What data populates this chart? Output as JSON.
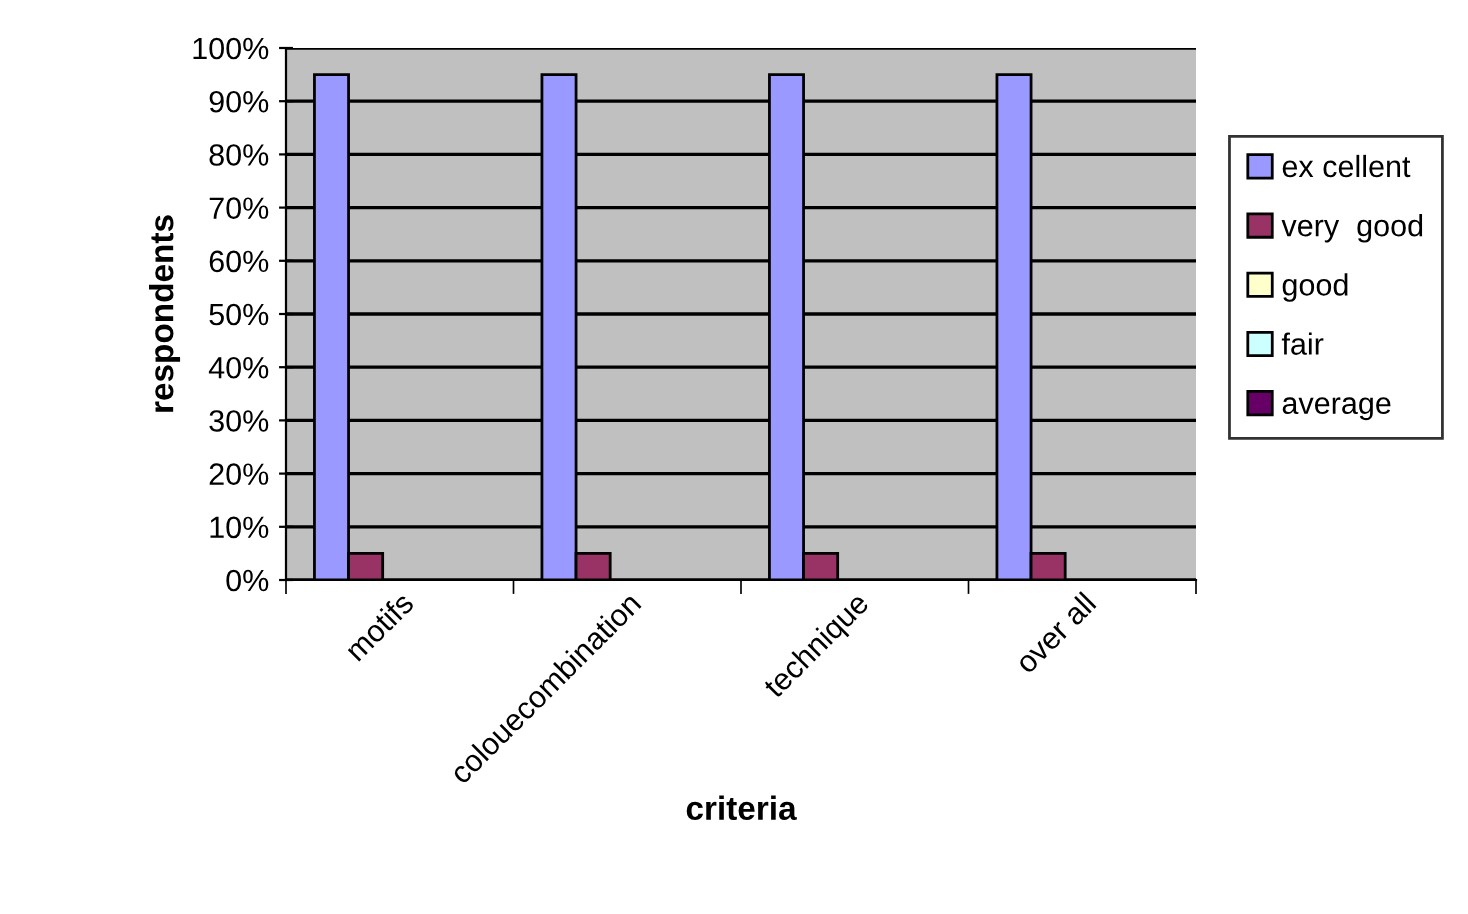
{
  "chart_data": {
    "type": "bar",
    "xlabel": "criteria",
    "ylabel": "respondents",
    "categories": [
      "motifs",
      "colouecombination",
      "technique",
      "over all"
    ],
    "series": [
      {
        "name": "ex cellent",
        "color": "#9999ff",
        "values": [
          95,
          95,
          95,
          95
        ]
      },
      {
        "name": "very  good",
        "color": "#993366",
        "values": [
          5,
          5,
          5,
          5
        ]
      },
      {
        "name": "good",
        "color": "#ffffcc",
        "values": [
          0,
          0,
          0,
          0
        ]
      },
      {
        "name": "fair",
        "color": "#ccffff",
        "values": [
          0,
          0,
          0,
          0
        ]
      },
      {
        "name": "average",
        "color": "#660066",
        "values": [
          0,
          0,
          0,
          0
        ]
      }
    ],
    "ylim": [
      0,
      100
    ],
    "yticks": [
      {
        "value": 0,
        "label": "0%"
      },
      {
        "value": 10,
        "label": "10%"
      },
      {
        "value": 20,
        "label": "20%"
      },
      {
        "value": 30,
        "label": "30%"
      },
      {
        "value": 40,
        "label": "40%"
      },
      {
        "value": 50,
        "label": "50%"
      },
      {
        "value": 60,
        "label": "60%"
      },
      {
        "value": 70,
        "label": "70%"
      },
      {
        "value": 80,
        "label": "80%"
      },
      {
        "value": 90,
        "label": "90%"
      },
      {
        "value": 100,
        "label": "100%"
      }
    ],
    "grid": "y",
    "legend": "right"
  }
}
